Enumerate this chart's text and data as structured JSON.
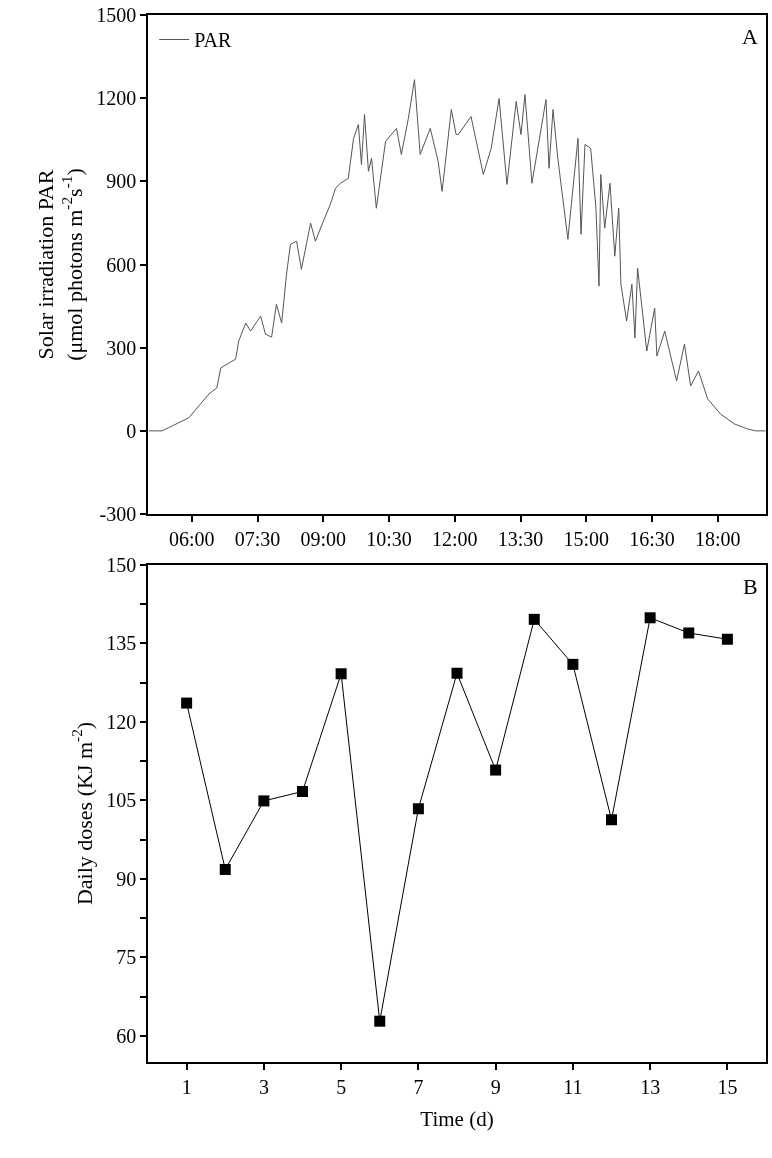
{
  "chart_data": [
    {
      "type": "line",
      "ylabel": "Solar irradiation PAR\n(μmol photons m$^{-2}$s$^{-1}$)",
      "annotations": [
        "A"
      ],
      "legend": "top left",
      "series": [
        {
          "name": "PAR",
          "color": "#555555",
          "x": [
            5.02,
            5.32,
            5.93,
            6.39,
            6.57,
            6.66,
            7.0,
            7.07,
            7.23,
            7.34,
            7.57,
            7.68,
            7.82,
            7.93,
            8.05,
            8.16,
            8.25,
            8.39,
            8.5,
            8.71,
            8.82,
            9.0,
            9.16,
            9.28,
            9.39,
            9.57,
            9.69,
            9.8,
            9.87,
            9.94,
            10.03,
            10.1,
            10.21,
            10.42,
            10.67,
            10.78,
            10.94,
            11.08,
            11.21,
            11.44,
            11.62,
            11.71,
            11.92,
            12.03,
            12.08,
            12.37,
            12.65,
            12.83,
            13.01,
            13.19,
            13.4,
            13.51,
            13.6,
            13.76,
            14.08,
            14.15,
            14.24,
            14.35,
            14.58,
            14.81,
            14.88,
            14.97,
            15.1,
            15.22,
            15.29,
            15.33,
            15.42,
            15.54,
            15.65,
            15.74,
            15.79,
            15.92,
            16.04,
            16.11,
            16.17,
            16.38,
            16.56,
            16.61,
            16.79,
            17.06,
            17.24,
            17.38,
            17.56,
            17.77,
            18.06,
            18.38,
            18.68,
            18.86,
            19.09
          ],
          "values": [
            0,
            0,
            47,
            133,
            155,
            227,
            259,
            324,
            389,
            360,
            414,
            349,
            338,
            457,
            389,
            565,
            673,
            684,
            583,
            749,
            684,
            756,
            817,
            875,
            893,
            911,
            1055,
            1105,
            961,
            1141,
            936,
            983,
            803,
            1044,
            1091,
            997,
            1127,
            1267,
            997,
            1091,
            972,
            864,
            1159,
            1069,
            1069,
            1134,
            925,
            1019,
            1199,
            889,
            1188,
            1069,
            1213,
            893,
            1195,
            947,
            1159,
            983,
            691,
            1055,
            709,
            1033,
            1019,
            803,
            522,
            925,
            731,
            893,
            630,
            803,
            529,
            396,
            529,
            335,
            587,
            288,
            443,
            270,
            360,
            180,
            313,
            162,
            216,
            115,
            61,
            25,
            7,
            0,
            0
          ]
        }
      ],
      "xlim": [
        5,
        19.1
      ],
      "xticks": [
        {
          "value": 6,
          "label": "06:00"
        },
        {
          "value": 7.5,
          "label": "07:30"
        },
        {
          "value": 9,
          "label": "09:00"
        },
        {
          "value": 10.5,
          "label": "10:30"
        },
        {
          "value": 12,
          "label": "12:00"
        },
        {
          "value": 13.5,
          "label": "13:30"
        },
        {
          "value": 15,
          "label": "15:00"
        },
        {
          "value": 16.5,
          "label": "16:30"
        },
        {
          "value": 18,
          "label": "18:00"
        }
      ],
      "ylim": [
        -300,
        1500
      ],
      "yticks": [
        -300,
        0,
        300,
        600,
        900,
        1200,
        1500
      ],
      "marker": "none",
      "line_style": "solid"
    },
    {
      "type": "line",
      "xlabel": "Time (d)",
      "ylabel": "Daily doses (KJ m$^{-2}$)",
      "annotations": [
        "B"
      ],
      "x": [
        1,
        2,
        3,
        4,
        5,
        6,
        7,
        8,
        9,
        10,
        11,
        12,
        13,
        14,
        15
      ],
      "series": [
        {
          "color": "#000000",
          "values": [
            123.6,
            91.8,
            104.9,
            106.7,
            129.2,
            62.8,
            103.4,
            129.3,
            110.8,
            139.6,
            131.0,
            101.3,
            139.9,
            137.0,
            135.8
          ]
        }
      ],
      "xlim": [
        0,
        16
      ],
      "xticks": [
        1,
        3,
        5,
        7,
        9,
        11,
        13,
        15
      ],
      "ylim": [
        55,
        150
      ],
      "yticks": [
        60,
        {
          "value": 67.5,
          "label": null
        },
        75,
        {
          "value": 82.5,
          "label": null
        },
        90,
        {
          "value": 97.5,
          "label": null
        },
        105,
        {
          "value": 112.5,
          "label": null
        },
        120,
        {
          "value": 127.5,
          "label": null
        },
        135,
        {
          "value": 142.5,
          "label": null
        },
        150
      ],
      "legend": false,
      "marker": "square",
      "line_style": "solid"
    }
  ]
}
